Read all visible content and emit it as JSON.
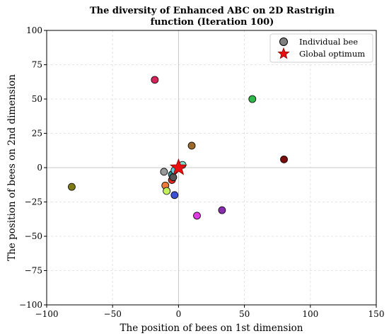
{
  "chart_data": {
    "type": "scatter",
    "title_lines": [
      "The diversity of Enhanced ABC on 2D Rastrigin",
      "function (Iteration 100)"
    ],
    "xlabel": "The position of bees on 1st dimension",
    "ylabel": "The position of bees on 2nd dimension",
    "xlim": [
      -100,
      150
    ],
    "ylim": [
      -100,
      100
    ],
    "x_ticks": [
      -100,
      -50,
      0,
      50,
      100,
      150
    ],
    "y_ticks": [
      -100,
      -75,
      -50,
      -25,
      0,
      25,
      50,
      75,
      100
    ],
    "x_tick_labels": [
      "−100",
      "−50",
      "0",
      "50",
      "100",
      "150"
    ],
    "y_tick_labels": [
      "−100",
      "−75",
      "−50",
      "−25",
      "0",
      "25",
      "50",
      "75",
      "100"
    ],
    "grid": true,
    "legend_position": "top-right",
    "legend": {
      "bee_label": "Individual bee",
      "optimum_label": "Global optimum"
    },
    "series": [
      {
        "name": "Individual bee",
        "points": [
          {
            "x": -18,
            "y": 64,
            "color": "#d8235a"
          },
          {
            "x": 56,
            "y": 50,
            "color": "#2eb84a"
          },
          {
            "x": 10,
            "y": 16,
            "color": "#9a6a2e"
          },
          {
            "x": 80,
            "y": 6,
            "color": "#7a0c0c"
          },
          {
            "x": -81,
            "y": -14,
            "color": "#7d7a12"
          },
          {
            "x": -3,
            "y": -20,
            "color": "#3b50d6"
          },
          {
            "x": -10,
            "y": -13,
            "color": "#ec7a3a"
          },
          {
            "x": -9,
            "y": -17,
            "color": "#c5f05a"
          },
          {
            "x": -11,
            "y": -3,
            "color": "#9a9a9a"
          },
          {
            "x": -5,
            "y": -5,
            "color": "#2a8f8f"
          },
          {
            "x": -3,
            "y": -2,
            "color": "#5ad1e0"
          },
          {
            "x": -5,
            "y": -9,
            "color": "#e0281e"
          },
          {
            "x": -4,
            "y": -7,
            "color": "#555555"
          },
          {
            "x": 3,
            "y": 2,
            "color": "#7fe0c8"
          },
          {
            "x": 14,
            "y": -35,
            "color": "#e03ae0"
          },
          {
            "x": 33,
            "y": -31,
            "color": "#8a2eb0"
          }
        ]
      },
      {
        "name": "Global optimum",
        "points": [
          {
            "x": 0,
            "y": 0,
            "color": "#e81010"
          }
        ]
      }
    ]
  }
}
